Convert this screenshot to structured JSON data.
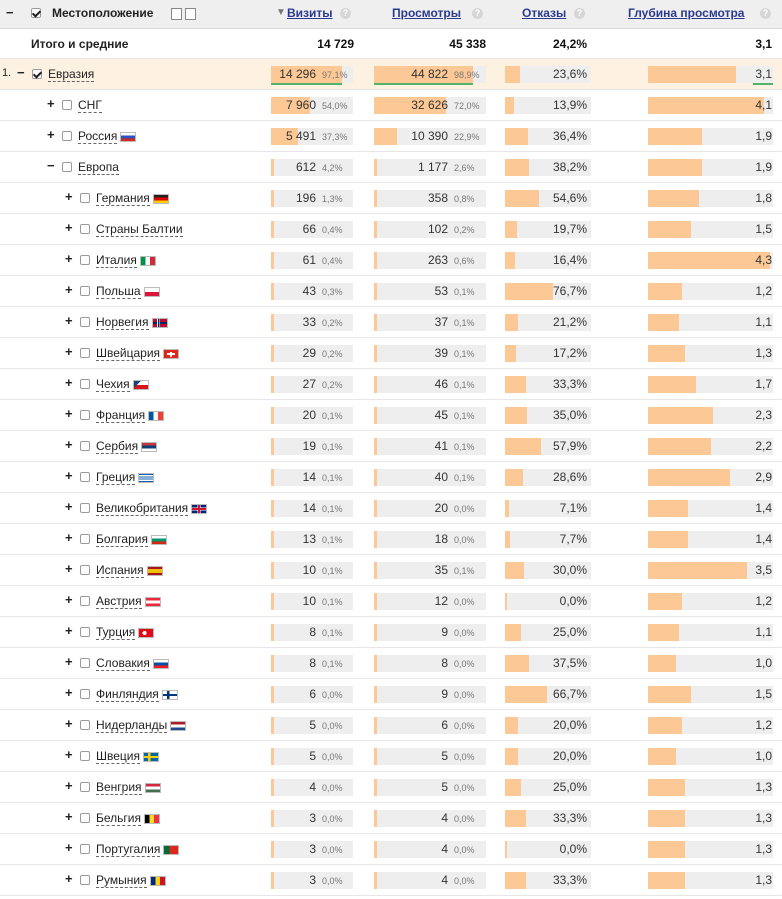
{
  "header": {
    "location": "Местоположение",
    "visits": "Визиты",
    "views": "Просмотры",
    "bounces": "Отказы",
    "depth": "Глубина просмотра",
    "help": "?",
    "collapse": "−",
    "sort_arrow": "▼"
  },
  "totals": {
    "label": "Итого и средние",
    "visits": "14 729",
    "views": "45 338",
    "bounces": "24,2%",
    "depth": "3,1"
  },
  "rows": [
    {
      "index": "1.",
      "toggle": "−",
      "checked": true,
      "level": 0,
      "name": "Евразия",
      "flag": "",
      "visits": "14 296",
      "visits_pct": "97,1%",
      "visits_share": 0.971,
      "views": "44 822",
      "views_pct": "98,9%",
      "views_share": 0.989,
      "bounces": "23,6%",
      "bounce_rate": 23.6,
      "depth": "3,1",
      "depth_value": 3.1
    },
    {
      "toggle": "+",
      "checked": false,
      "level": 1,
      "name": "СНГ",
      "flag": "",
      "visits": "7 960",
      "visits_pct": "54,0%",
      "visits_share": 0.54,
      "views": "32 626",
      "views_pct": "72,0%",
      "views_share": 0.72,
      "bounces": "13,9%",
      "bounce_rate": 13.9,
      "depth": "4,1",
      "depth_value": 4.1
    },
    {
      "toggle": "+",
      "checked": false,
      "level": 1,
      "name": "Россия",
      "flag": "ru",
      "visits": "5 491",
      "visits_pct": "37,3%",
      "visits_share": 0.373,
      "views": "10 390",
      "views_pct": "22,9%",
      "views_share": 0.229,
      "bounces": "36,4%",
      "bounce_rate": 36.4,
      "depth": "1,9",
      "depth_value": 1.9
    },
    {
      "toggle": "−",
      "checked": false,
      "level": 1,
      "name": "Европа",
      "flag": "",
      "visits": "612",
      "visits_pct": "4,2%",
      "visits_share": 0.042,
      "views": "1 177",
      "views_pct": "2,6%",
      "views_share": 0.026,
      "bounces": "38,2%",
      "bounce_rate": 38.2,
      "depth": "1,9",
      "depth_value": 1.9
    },
    {
      "toggle": "+",
      "checked": false,
      "level": 2,
      "name": "Германия",
      "flag": "de",
      "visits": "196",
      "visits_pct": "1,3%",
      "visits_share": 0.013,
      "views": "358",
      "views_pct": "0,8%",
      "views_share": 0.008,
      "bounces": "54,6%",
      "bounce_rate": 54.6,
      "depth": "1,8",
      "depth_value": 1.8
    },
    {
      "toggle": "+",
      "checked": false,
      "level": 2,
      "name": "Страны Балтии",
      "flag": "",
      "visits": "66",
      "visits_pct": "0,4%",
      "visits_share": 0.004,
      "views": "102",
      "views_pct": "0,2%",
      "views_share": 0.002,
      "bounces": "19,7%",
      "bounce_rate": 19.7,
      "depth": "1,5",
      "depth_value": 1.5
    },
    {
      "toggle": "+",
      "checked": false,
      "level": 2,
      "name": "Италия",
      "flag": "it",
      "visits": "61",
      "visits_pct": "0,4%",
      "visits_share": 0.004,
      "views": "263",
      "views_pct": "0,6%",
      "views_share": 0.006,
      "bounces": "16,4%",
      "bounce_rate": 16.4,
      "depth": "4,3",
      "depth_value": 4.3
    },
    {
      "toggle": "+",
      "checked": false,
      "level": 2,
      "name": "Польша",
      "flag": "pl",
      "visits": "43",
      "visits_pct": "0,3%",
      "visits_share": 0.003,
      "views": "53",
      "views_pct": "0,1%",
      "views_share": 0.001,
      "bounces": "76,7%",
      "bounce_rate": 76.7,
      "depth": "1,2",
      "depth_value": 1.2
    },
    {
      "toggle": "+",
      "checked": false,
      "level": 2,
      "name": "Норвегия",
      "flag": "no",
      "visits": "33",
      "visits_pct": "0,2%",
      "visits_share": 0.002,
      "views": "37",
      "views_pct": "0,1%",
      "views_share": 0.001,
      "bounces": "21,2%",
      "bounce_rate": 21.2,
      "depth": "1,1",
      "depth_value": 1.1
    },
    {
      "toggle": "+",
      "checked": false,
      "level": 2,
      "name": "Швейцария",
      "flag": "ch",
      "visits": "29",
      "visits_pct": "0,2%",
      "visits_share": 0.002,
      "views": "39",
      "views_pct": "0,1%",
      "views_share": 0.001,
      "bounces": "17,2%",
      "bounce_rate": 17.2,
      "depth": "1,3",
      "depth_value": 1.3
    },
    {
      "toggle": "+",
      "checked": false,
      "level": 2,
      "name": "Чехия",
      "flag": "cz",
      "visits": "27",
      "visits_pct": "0,2%",
      "visits_share": 0.002,
      "views": "46",
      "views_pct": "0,1%",
      "views_share": 0.001,
      "bounces": "33,3%",
      "bounce_rate": 33.3,
      "depth": "1,7",
      "depth_value": 1.7
    },
    {
      "toggle": "+",
      "checked": false,
      "level": 2,
      "name": "Франция",
      "flag": "fr",
      "visits": "20",
      "visits_pct": "0,1%",
      "visits_share": 0.001,
      "views": "45",
      "views_pct": "0,1%",
      "views_share": 0.001,
      "bounces": "35,0%",
      "bounce_rate": 35.0,
      "depth": "2,3",
      "depth_value": 2.3
    },
    {
      "toggle": "+",
      "checked": false,
      "level": 2,
      "name": "Сербия",
      "flag": "rs",
      "visits": "19",
      "visits_pct": "0,1%",
      "visits_share": 0.001,
      "views": "41",
      "views_pct": "0,1%",
      "views_share": 0.001,
      "bounces": "57,9%",
      "bounce_rate": 57.9,
      "depth": "2,2",
      "depth_value": 2.2
    },
    {
      "toggle": "+",
      "checked": false,
      "level": 2,
      "name": "Греция",
      "flag": "gr",
      "visits": "14",
      "visits_pct": "0,1%",
      "visits_share": 0.001,
      "views": "40",
      "views_pct": "0,1%",
      "views_share": 0.001,
      "bounces": "28,6%",
      "bounce_rate": 28.6,
      "depth": "2,9",
      "depth_value": 2.9
    },
    {
      "toggle": "+",
      "checked": false,
      "level": 2,
      "name": "Великобритания",
      "flag": "gb",
      "visits": "14",
      "visits_pct": "0,1%",
      "visits_share": 0.001,
      "views": "20",
      "views_pct": "0,0%",
      "views_share": 0.0,
      "bounces": "7,1%",
      "bounce_rate": 7.1,
      "depth": "1,4",
      "depth_value": 1.4
    },
    {
      "toggle": "+",
      "checked": false,
      "level": 2,
      "name": "Болгария",
      "flag": "bg",
      "visits": "13",
      "visits_pct": "0,1%",
      "visits_share": 0.001,
      "views": "18",
      "views_pct": "0,0%",
      "views_share": 0.0,
      "bounces": "7,7%",
      "bounce_rate": 7.7,
      "depth": "1,4",
      "depth_value": 1.4
    },
    {
      "toggle": "+",
      "checked": false,
      "level": 2,
      "name": "Испания",
      "flag": "es",
      "visits": "10",
      "visits_pct": "0,1%",
      "visits_share": 0.001,
      "views": "35",
      "views_pct": "0,1%",
      "views_share": 0.001,
      "bounces": "30,0%",
      "bounce_rate": 30.0,
      "depth": "3,5",
      "depth_value": 3.5
    },
    {
      "toggle": "+",
      "checked": false,
      "level": 2,
      "name": "Австрия",
      "flag": "at",
      "visits": "10",
      "visits_pct": "0,1%",
      "visits_share": 0.001,
      "views": "12",
      "views_pct": "0,0%",
      "views_share": 0.0,
      "bounces": "0,0%",
      "bounce_rate": 0.0,
      "depth": "1,2",
      "depth_value": 1.2
    },
    {
      "toggle": "+",
      "checked": false,
      "level": 2,
      "name": "Турция",
      "flag": "tr",
      "visits": "8",
      "visits_pct": "0,1%",
      "visits_share": 0.001,
      "views": "9",
      "views_pct": "0,0%",
      "views_share": 0.0,
      "bounces": "25,0%",
      "bounce_rate": 25.0,
      "depth": "1,1",
      "depth_value": 1.1
    },
    {
      "toggle": "+",
      "checked": false,
      "level": 2,
      "name": "Словакия",
      "flag": "sk",
      "visits": "8",
      "visits_pct": "0,1%",
      "visits_share": 0.001,
      "views": "8",
      "views_pct": "0,0%",
      "views_share": 0.0,
      "bounces": "37,5%",
      "bounce_rate": 37.5,
      "depth": "1,0",
      "depth_value": 1.0
    },
    {
      "toggle": "+",
      "checked": false,
      "level": 2,
      "name": "Финляндия",
      "flag": "fi",
      "visits": "6",
      "visits_pct": "0,0%",
      "visits_share": 0.0,
      "views": "9",
      "views_pct": "0,0%",
      "views_share": 0.0,
      "bounces": "66,7%",
      "bounce_rate": 66.7,
      "depth": "1,5",
      "depth_value": 1.5
    },
    {
      "toggle": "+",
      "checked": false,
      "level": 2,
      "name": "Нидерланды",
      "flag": "nl",
      "visits": "5",
      "visits_pct": "0,0%",
      "visits_share": 0.0,
      "views": "6",
      "views_pct": "0,0%",
      "views_share": 0.0,
      "bounces": "20,0%",
      "bounce_rate": 20.0,
      "depth": "1,2",
      "depth_value": 1.2
    },
    {
      "toggle": "+",
      "checked": false,
      "level": 2,
      "name": "Швеция",
      "flag": "se",
      "visits": "5",
      "visits_pct": "0,0%",
      "visits_share": 0.0,
      "views": "5",
      "views_pct": "0,0%",
      "views_share": 0.0,
      "bounces": "20,0%",
      "bounce_rate": 20.0,
      "depth": "1,0",
      "depth_value": 1.0
    },
    {
      "toggle": "+",
      "checked": false,
      "level": 2,
      "name": "Венгрия",
      "flag": "hu",
      "visits": "4",
      "visits_pct": "0,0%",
      "visits_share": 0.0,
      "views": "5",
      "views_pct": "0,0%",
      "views_share": 0.0,
      "bounces": "25,0%",
      "bounce_rate": 25.0,
      "depth": "1,3",
      "depth_value": 1.3
    },
    {
      "toggle": "+",
      "checked": false,
      "level": 2,
      "name": "Бельгия",
      "flag": "be",
      "visits": "3",
      "visits_pct": "0,0%",
      "visits_share": 0.0,
      "views": "4",
      "views_pct": "0,0%",
      "views_share": 0.0,
      "bounces": "33,3%",
      "bounce_rate": 33.3,
      "depth": "1,3",
      "depth_value": 1.3
    },
    {
      "toggle": "+",
      "checked": false,
      "level": 2,
      "name": "Португалия",
      "flag": "pt",
      "visits": "3",
      "visits_pct": "0,0%",
      "visits_share": 0.0,
      "views": "4",
      "views_pct": "0,0%",
      "views_share": 0.0,
      "bounces": "0,0%",
      "bounce_rate": 0.0,
      "depth": "1,3",
      "depth_value": 1.3
    },
    {
      "toggle": "+",
      "checked": false,
      "level": 2,
      "name": "Румыния",
      "flag": "ro",
      "visits": "3",
      "visits_pct": "0,0%",
      "visits_share": 0.0,
      "views": "4",
      "views_pct": "0,0%",
      "views_share": 0.0,
      "bounces": "33,3%",
      "bounce_rate": 33.3,
      "depth": "1,3",
      "depth_value": 1.3
    }
  ],
  "colors": {
    "bar_fill": "#fcc895",
    "bar_bg": "#eeeeee",
    "header_link": "#2a3b8f",
    "highlight_row": "#fdf2e2",
    "accent_line": "#52b36b"
  },
  "flags": {
    "ru": "linear-gradient(#ffffff 0 33%, #2a4fbf 33% 66%, #d52b1e 66%)",
    "de": "linear-gradient(#222 0 33%, #d00 33% 66%, #ffce00 66%)",
    "it": "linear-gradient(90deg, #009246 0 33%, #fff 33% 66%, #ce2b37 66%)",
    "pl": "linear-gradient(#fff 0 50%, #dc143c 50%)",
    "no": "linear-gradient(90deg, transparent 0 30%, #fff 30% 35%, #002868 35% 45%, #fff 45% 50%, transparent 50%), linear-gradient(transparent 0 35%, #fff 35% 40%, #002868 40% 60%, #fff 60% 65%, transparent 65%), #ba0c2f",
    "ch": "linear-gradient(transparent 0 40%, #fff 40% 60%, transparent 60%) 50% 50%/60% 100% no-repeat, linear-gradient(90deg, transparent 0 43%, #fff 43% 57%, transparent 57%) 50% 50%/100% 60% no-repeat, #da291c",
    "cz": "linear-gradient(135deg, #11457e 0 30%, transparent 30%), linear-gradient(#fff 0 50%, #d7141a 50%)",
    "fr": "linear-gradient(90deg, #0055a4 0 33%, #fff 33% 66%, #ef4135 66%)",
    "rs": "linear-gradient(#c6363c 0 33%, #0c4076 33% 66%, #fff 66%)",
    "gr": "repeating-linear-gradient(#0d5eaf 0 11%, #fff 11% 22%)",
    "gb": "linear-gradient(transparent 0 40%, #cf142b 40% 60%, transparent 60%), linear-gradient(90deg, transparent 0 44%, #cf142b 44% 56%, transparent 56%), linear-gradient(transparent 0 30%, #fff 30% 70%, transparent 70%), linear-gradient(90deg, transparent 0 38%, #fff 38% 62%, transparent 62%), #00247d",
    "bg": "linear-gradient(#fff 0 33%, #00966e 33% 66%, #d62612 66%)",
    "es": "linear-gradient(#aa151b 0 25%, #f1bf00 25% 75%, #aa151b 75%)",
    "at": "linear-gradient(#ed2939 0 33%, #fff 33% 66%, #ed2939 66%)",
    "tr": "radial-gradient(circle at 40% 50%, #fff 0 22%, transparent 23%), #e30a17",
    "sk": "linear-gradient(#fff 0 33%, #0b4ea2 33% 66%, #ee1c25 66%)",
    "fi": "linear-gradient(transparent 0 38%, #003580 38% 62%, transparent 62%), linear-gradient(90deg, transparent 0 30%, #003580 30% 45%, transparent 45%), #fff",
    "nl": "linear-gradient(#ae1c28 0 33%, #fff 33% 66%, #21468b 66%)",
    "se": "linear-gradient(transparent 0 38%, #fecc00 38% 62%, transparent 62%), linear-gradient(90deg, transparent 0 30%, #fecc00 30% 45%, transparent 45%), #006aa7",
    "hu": "linear-gradient(#cd2a3e 0 33%, #fff 33% 66%, #436f4d 66%)",
    "be": "linear-gradient(90deg, #000 0 33%, #fdda24 33% 66%, #ef3340 66%)",
    "pt": "linear-gradient(90deg, #046a38 0 40%, #da291c 40%)",
    "ro": "linear-gradient(90deg, #002b7f 0 33%, #fcd116 33% 66%, #ce1126 66%)"
  }
}
